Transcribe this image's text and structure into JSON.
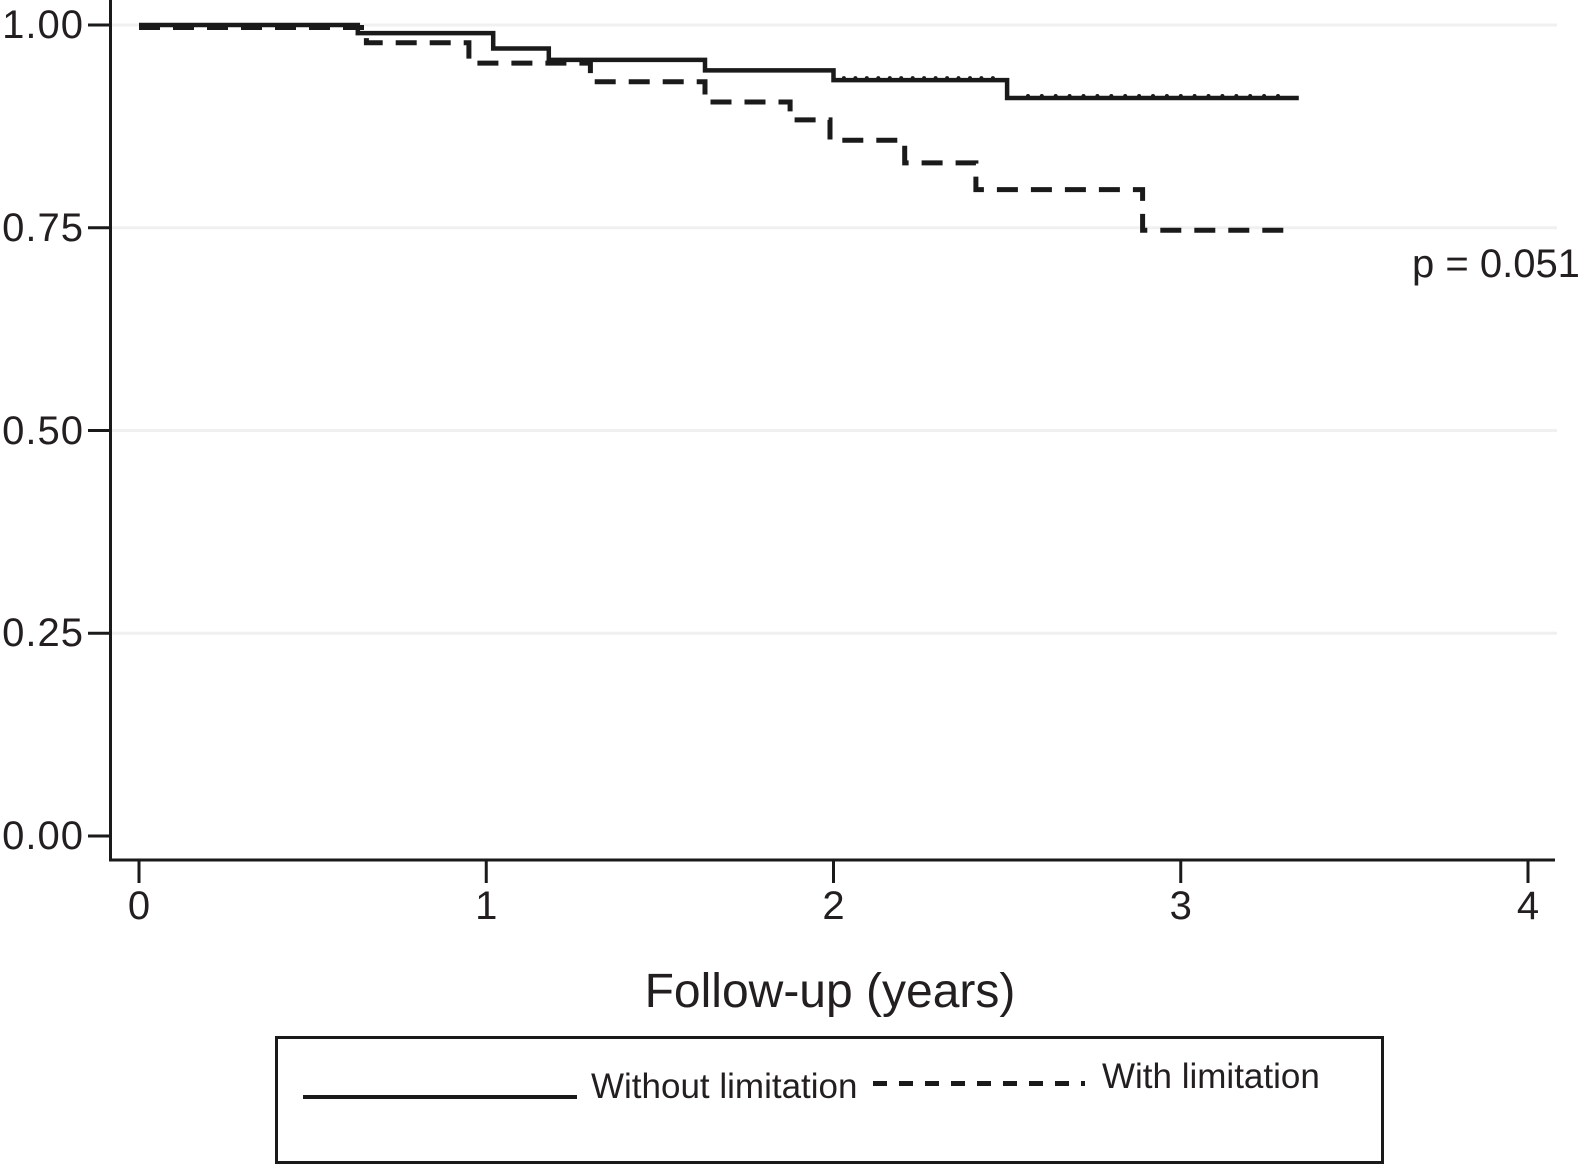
{
  "figure": {
    "p_value_label": "p = 0.051",
    "x_axis": {
      "title": "Follow-up (years)",
      "ticks": [
        {
          "label": "0",
          "value": 0
        },
        {
          "label": "1",
          "value": 1
        },
        {
          "label": "2",
          "value": 2
        },
        {
          "label": "3",
          "value": 3
        },
        {
          "label": "4",
          "value": 4
        }
      ]
    },
    "y_axis": {
      "ticks": [
        {
          "label": "1.00",
          "value": 1.0
        },
        {
          "label": "0.75",
          "value": 0.75
        },
        {
          "label": "0.50",
          "value": 0.5
        },
        {
          "label": "0.25",
          "value": 0.25
        },
        {
          "label": "0.00",
          "value": 0.0
        }
      ],
      "grid_values": [
        1.0,
        0.75,
        0.5,
        0.25
      ]
    },
    "legend": {
      "items": [
        {
          "label": "Without limitation",
          "style": "solid"
        },
        {
          "label": "With limitation",
          "style": "dashed"
        }
      ]
    }
  },
  "chart_data": {
    "type": "line",
    "subtype": "kaplan-meier-step",
    "title": "",
    "xlabel": "Follow-up (years)",
    "ylabel": "",
    "xlim": [
      0,
      4
    ],
    "ylim": [
      0.0,
      1.0
    ],
    "grid": "horizontal light-gray lines at 0.25, 0.50, 0.75, 1.00",
    "legend_position": "boxed, centered below x-axis title",
    "line_color": "#1a1a1a",
    "grid_color": "#f0f0f0",
    "annotations": [
      {
        "text": "p = 0.051",
        "x": 3.7,
        "y": 0.7
      }
    ],
    "series": [
      {
        "name": "Without limitation",
        "style": "solid",
        "steps": [
          [
            0,
            1.0
          ],
          [
            0.63,
            0.99
          ],
          [
            1.02,
            0.971
          ],
          [
            1.18,
            0.957
          ],
          [
            1.63,
            0.944
          ],
          [
            2.0,
            0.932
          ],
          [
            2.5,
            0.91
          ]
        ],
        "end_time": 3.34
      },
      {
        "name": "With limitation",
        "style": "dashed",
        "steps": [
          [
            0,
            1.0
          ],
          [
            0.655,
            0.978
          ],
          [
            0.95,
            0.953
          ],
          [
            1.3,
            0.93
          ],
          [
            1.63,
            0.905
          ],
          [
            1.875,
            0.883
          ],
          [
            1.99,
            0.858
          ],
          [
            2.205,
            0.83
          ],
          [
            2.41,
            0.797
          ],
          [
            2.89,
            0.747
          ]
        ],
        "end_time": 3.33
      }
    ],
    "censor_marks": [
      {
        "series": "Without limitation",
        "range": [
          2.03,
          2.48
        ],
        "spacing": 0.033,
        "level": 0.932
      },
      {
        "series": "Without limitation",
        "range": [
          2.56,
          3.31
        ],
        "spacing": 0.04,
        "level": 0.91
      }
    ]
  }
}
